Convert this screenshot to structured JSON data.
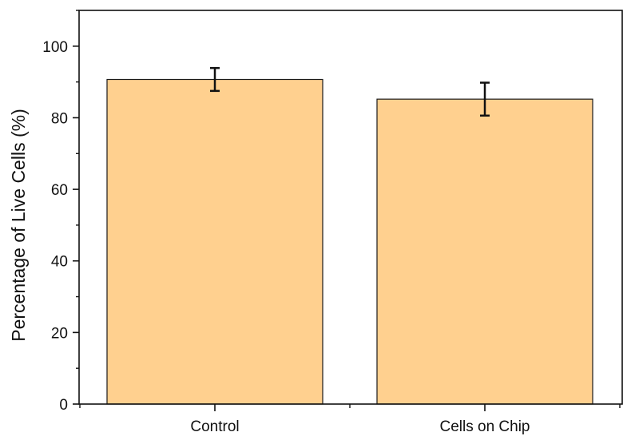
{
  "chart_data": {
    "type": "bar",
    "title": "",
    "xlabel": "",
    "ylabel": "Percentage of Live Cells (%)",
    "categories": [
      "Control",
      "Cells on Chip"
    ],
    "values": [
      90.7,
      85.2
    ],
    "errors": [
      3.2,
      4.6
    ],
    "ylim": [
      0,
      110
    ],
    "yticks": [
      0,
      20,
      40,
      60,
      80,
      100
    ],
    "ytick_labels": [
      "0",
      "20",
      "40",
      "60",
      "80",
      "100"
    ],
    "minor_ytick_step": 10,
    "grid": false,
    "legend": "none",
    "bar_color": "#FFD08F",
    "bar_edge_color": "#1a1a1a",
    "axis_color": "#111111"
  }
}
